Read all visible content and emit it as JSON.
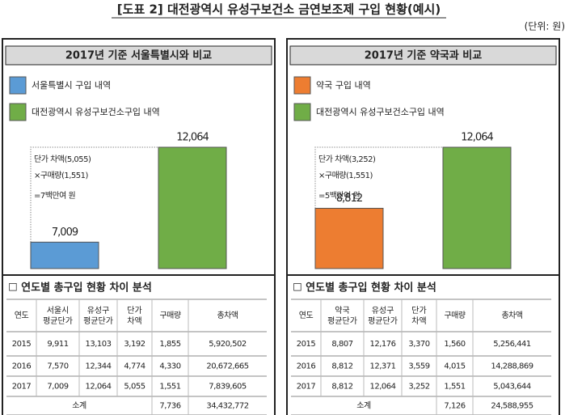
{
  "title": "[도표 2] 대전광역시 유성구보건소 금연보조제 구입 현황(예시)",
  "unit": "(단위: 원)",
  "panels": [
    {
      "header": "2017년 기준 서울특별시와 비교",
      "legend": [
        {
          "label": "서울특별시 구입 내역",
          "color": "#5b9bd5"
        },
        {
          "label": "대전광역시 유성구보건소구입 내역",
          "color": "#70ad47"
        }
      ],
      "bars": [
        {
          "value": 7009,
          "label": "7,009"
        },
        {
          "value": 12064,
          "label": "12,064"
        }
      ],
      "note": [
        "단가 차액(5,055)",
        "×구매량(1,551)",
        "=7백만여 원"
      ],
      "section": "☐ 연도별 총구입 현황 차이 분석",
      "table": {
        "header": [
          "연도",
          "서울시 평균단가",
          "유성구 평균단가",
          "단가 차액",
          "구매량",
          "총차액"
        ],
        "rows": [
          [
            "2015",
            "9,911",
            "13,103",
            "3,192",
            "1,855",
            "5,920,502"
          ],
          [
            "2016",
            "7,570",
            "12,344",
            "4,774",
            "4,330",
            "20,672,665"
          ],
          [
            "2017",
            "7,009",
            "12,064",
            "5,055",
            "1,551",
            "7,839,605"
          ]
        ],
        "total": [
          "소계",
          "7,736",
          "34,432,772"
        ]
      }
    },
    {
      "header": "2017년 기준 약국과 비교",
      "legend": [
        {
          "label": "약국 구입 내역",
          "color": "#ed7d31"
        },
        {
          "label": "대전광역시 유성구보건소구입 내역",
          "color": "#70ad47"
        }
      ],
      "bars": [
        {
          "value": 8812,
          "label": "8,812"
        },
        {
          "value": 12064,
          "label": "12,064"
        }
      ],
      "note": [
        "단가 차액(3,252)",
        "×구매량(1,551)",
        "=5백만여 원"
      ],
      "section": "☐ 연도별 총구입 현황 차이 분석",
      "table": {
        "header": [
          "연도",
          "약국 평균단가",
          "유성구 평균단가",
          "단가 차액",
          "구매량",
          "총차액"
        ],
        "rows": [
          [
            "2015",
            "8,807",
            "12,176",
            "3,370",
            "1,560",
            "5,256,441"
          ],
          [
            "2016",
            "8,812",
            "12,371",
            "3,559",
            "4,015",
            "14,288,869"
          ],
          [
            "2017",
            "8,812",
            "12,064",
            "3,252",
            "1,551",
            "5,043,644"
          ]
        ],
        "total": [
          "소계",
          "7,126",
          "24,588,955"
        ]
      }
    }
  ]
}
